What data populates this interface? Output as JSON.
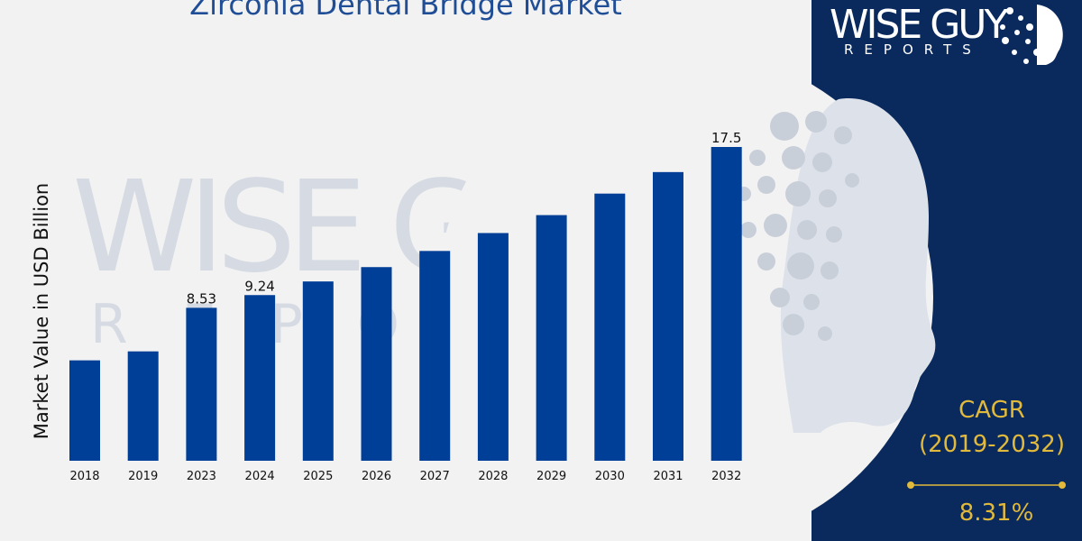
{
  "title": "Zirconia Dental Bridge Market",
  "brand": {
    "name": "WISE GUY",
    "sub": "REPORTS"
  },
  "cagr": {
    "label": "CAGR",
    "period": "(2019-2032)",
    "value": "8.31%"
  },
  "colors": {
    "bar": "#003f98",
    "panel": "#0a2a5e",
    "accent": "#e1b93b",
    "title": "#1f4e96"
  },
  "chart_data": {
    "type": "bar",
    "ylabel": "Market Value in USD Billion",
    "categories": [
      "2018",
      "2019",
      "2023",
      "2024",
      "2025",
      "2026",
      "2027",
      "2028",
      "2029",
      "2030",
      "2031",
      "2032"
    ],
    "values": [
      5.6,
      6.1,
      8.53,
      9.24,
      10.0,
      10.8,
      11.7,
      12.7,
      13.7,
      14.9,
      16.1,
      17.5
    ],
    "data_labels": {
      "2023": "8.53",
      "2024": "9.24",
      "2032": "17.5"
    },
    "ylim": [
      0,
      17.5
    ],
    "grid": false
  }
}
